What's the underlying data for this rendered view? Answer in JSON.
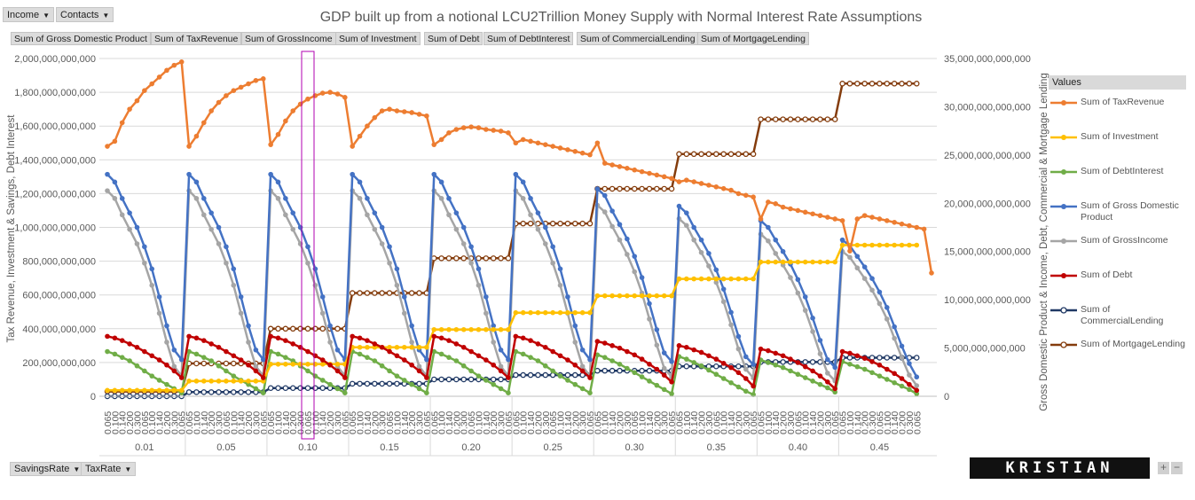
{
  "report_filters": {
    "income": "Income",
    "contacts": "Contacts"
  },
  "value_fields": [
    "Sum of Gross Domestic Product",
    "Sum of TaxRevenue",
    "Sum of GrossIncome",
    "Sum of Investment",
    "Sum of Debt",
    "Sum of DebtInterest",
    "Sum of CommercialLending",
    "Sum of MortgageLending"
  ],
  "axis_fields": {
    "savings_rate": "SavingsRate",
    "tax_rate": "TaxRate"
  },
  "logo_text": "KRISTIAN ZUBER",
  "zoom": {
    "plus": "+",
    "minus": "−"
  },
  "colors": {
    "tax": "#ED7D31",
    "investment": "#FFC000",
    "debt_interest": "#70AD47",
    "gdp": "#4472C4",
    "gross_income": "#A5A5A5",
    "debt": "#C00000",
    "commercial": "#1F3864",
    "mortgage": "#843C0C",
    "highlight": "#B000B0"
  },
  "chart_data": {
    "type": "line",
    "title": "GDP built up from a notional LCU2Trillion Money Supply with Normal Interest Rate Assumptions",
    "ylabel_left": "Tax Revenue, Investment & Savings, Debt Interest",
    "ylabel_right": "Gross Domestic Product & Income, Debt, Commercial & Mortgage Lending",
    "ylim_left": [
      0,
      2000000000000
    ],
    "ylim_right": [
      0,
      35000000000000
    ],
    "yticks_left": [
      "2,000,000,000,000",
      "1,800,000,000,000",
      "1,600,000,000,000",
      "1,400,000,000,000",
      "1,200,000,000,000",
      "1,000,000,000,000",
      "800,000,000,000",
      "600,000,000,000",
      "400,000,000,000",
      "200,000,000,000",
      "0"
    ],
    "yticks_right": [
      "35,000,000,000,000",
      "30,000,000,000,000",
      "25,000,000,000,000",
      "20,000,000,000,000",
      "15,000,000,000,000",
      "10,000,000,000,000",
      "5,000,000,000,000",
      "0"
    ],
    "tax_rates": [
      "0.065",
      "0.100",
      "0.140",
      "0.200",
      "0.300"
    ],
    "savings_rates": [
      "0.01",
      "0.05",
      "0.10",
      "0.15",
      "0.20",
      "0.25",
      "0.30",
      "0.35",
      "0.40",
      "0.45"
    ],
    "points_per_group": 11,
    "highlight": {
      "savings_rate": "0.10",
      "tax_rate": "0.140"
    },
    "legend_title": "Values",
    "series": [
      {
        "name": "Sum of TaxRevenue",
        "key": "tax",
        "axis": "left",
        "marker": "filled",
        "values": [
          1480,
          1510,
          1620,
          1700,
          1750,
          1810,
          1850,
          1890,
          1930,
          1960,
          1980,
          1480,
          1540,
          1620,
          1690,
          1740,
          1780,
          1810,
          1830,
          1850,
          1870,
          1880,
          1490,
          1550,
          1630,
          1690,
          1730,
          1760,
          1780,
          1795,
          1800,
          1790,
          1770,
          1480,
          1540,
          1600,
          1650,
          1690,
          1700,
          1690,
          1685,
          1680,
          1670,
          1660,
          1490,
          1520,
          1560,
          1580,
          1590,
          1595,
          1590,
          1580,
          1575,
          1570,
          1560,
          1500,
          1520,
          1510,
          1500,
          1490,
          1480,
          1470,
          1460,
          1450,
          1440,
          1430,
          1500,
          1380,
          1370,
          1360,
          1350,
          1340,
          1330,
          1320,
          1310,
          1300,
          1290,
          1270,
          1280,
          1270,
          1260,
          1250,
          1240,
          1230,
          1220,
          1200,
          1190,
          1180,
          1050,
          1150,
          1140,
          1120,
          1110,
          1100,
          1090,
          1080,
          1070,
          1060,
          1050,
          1040,
          860,
          1050,
          1070,
          1060,
          1050,
          1040,
          1030,
          1020,
          1010,
          1000,
          990,
          730
        ]
      },
      {
        "name": "Sum of Investment",
        "key": "investment",
        "axis": "left",
        "marker": "filled",
        "values": [
          35,
          35,
          35,
          35,
          35,
          35,
          35,
          35,
          35,
          35,
          35,
          90,
          90,
          90,
          90,
          90,
          90,
          90,
          90,
          90,
          90,
          90,
          190,
          190,
          190,
          190,
          190,
          190,
          190,
          190,
          190,
          190,
          190,
          290,
          290,
          290,
          290,
          290,
          290,
          290,
          290,
          290,
          290,
          290,
          395,
          395,
          395,
          395,
          395,
          395,
          395,
          395,
          395,
          395,
          395,
          495,
          495,
          495,
          495,
          495,
          495,
          495,
          495,
          495,
          495,
          495,
          595,
          595,
          595,
          595,
          595,
          595,
          595,
          595,
          595,
          595,
          595,
          695,
          695,
          695,
          695,
          695,
          695,
          695,
          695,
          695,
          695,
          695,
          795,
          795,
          795,
          795,
          795,
          795,
          795,
          795,
          795,
          795,
          795,
          895,
          895,
          895,
          895,
          895,
          895,
          895,
          895,
          895,
          895,
          895
        ]
      },
      {
        "name": "Sum of DebtInterest",
        "key": "debt_interest",
        "axis": "left",
        "marker": "filled",
        "values": [
          265,
          250,
          230,
          210,
          180,
          150,
          120,
          95,
          70,
          45,
          20,
          265,
          250,
          230,
          210,
          180,
          150,
          120,
          95,
          70,
          45,
          20,
          265,
          250,
          230,
          210,
          180,
          150,
          120,
          95,
          70,
          45,
          20,
          265,
          250,
          230,
          210,
          180,
          150,
          120,
          95,
          70,
          45,
          20,
          265,
          250,
          230,
          210,
          180,
          150,
          120,
          95,
          70,
          45,
          20,
          265,
          250,
          230,
          210,
          180,
          150,
          120,
          95,
          70,
          45,
          20,
          245,
          230,
          210,
          190,
          165,
          140,
          115,
          90,
          65,
          40,
          15,
          235,
          220,
          200,
          180,
          155,
          130,
          105,
          80,
          55,
          30,
          10,
          215,
          200,
          185,
          170,
          150,
          130,
          110,
          90,
          70,
          50,
          25,
          205,
          190,
          175,
          160,
          140,
          120,
          100,
          80,
          60,
          40,
          15
        ]
      },
      {
        "name": "Sum of Gross Domestic Product",
        "key": "gdp",
        "axis": "right",
        "marker": "filled",
        "values": [
          23000,
          22200,
          20500,
          19000,
          17500,
          15500,
          13200,
          10300,
          7300,
          4800,
          3800,
          23000,
          22200,
          20500,
          19000,
          17500,
          15500,
          13200,
          10300,
          7300,
          4800,
          3800,
          23000,
          22200,
          20500,
          19000,
          17500,
          15500,
          13200,
          10300,
          7300,
          4800,
          3800,
          23000,
          22200,
          20500,
          19000,
          17500,
          15500,
          13200,
          10300,
          7300,
          4800,
          3800,
          23000,
          22200,
          20500,
          19000,
          17500,
          15500,
          13200,
          10300,
          7300,
          4800,
          3800,
          23000,
          22200,
          20500,
          19000,
          17500,
          15500,
          13200,
          10300,
          7300,
          4800,
          3800,
          21500,
          20800,
          19200,
          17800,
          16300,
          14500,
          12300,
          9600,
          6900,
          4500,
          3600,
          19700,
          19000,
          17500,
          16200,
          14800,
          13100,
          11100,
          8700,
          6200,
          4100,
          3300,
          18200,
          17500,
          16200,
          15000,
          13700,
          12100,
          10300,
          8100,
          5800,
          3800,
          3000,
          16200,
          15600,
          14500,
          13400,
          12200,
          10800,
          9200,
          7200,
          5200,
          3400,
          2000
        ]
      },
      {
        "name": "Sum of GrossIncome",
        "key": "gross_income",
        "axis": "right",
        "marker": "filled",
        "values": [
          21300,
          20500,
          18800,
          17300,
          15800,
          13800,
          11500,
          8600,
          5600,
          3100,
          2100,
          21300,
          20500,
          18800,
          17300,
          15800,
          13800,
          11500,
          8600,
          5600,
          3100,
          2100,
          21300,
          20500,
          18800,
          17300,
          15800,
          13800,
          11500,
          8600,
          5600,
          3100,
          2100,
          21300,
          20500,
          18800,
          17300,
          15800,
          13800,
          11500,
          8600,
          5600,
          3100,
          2100,
          21300,
          20500,
          18800,
          17300,
          15800,
          13800,
          11500,
          8600,
          5600,
          3100,
          2100,
          21300,
          20500,
          18800,
          17300,
          15800,
          13800,
          11500,
          8600,
          5600,
          3100,
          2100,
          19800,
          19100,
          17600,
          16200,
          14700,
          12900,
          10700,
          8000,
          5300,
          2900,
          2000,
          18400,
          17700,
          16200,
          14900,
          13500,
          11800,
          9800,
          7400,
          4900,
          2800,
          1900,
          16800,
          16100,
          14800,
          13600,
          12300,
          10700,
          8900,
          6700,
          4400,
          2400,
          1600,
          15000,
          14400,
          13300,
          12200,
          11000,
          9600,
          8000,
          6000,
          4000,
          2200,
          1100
        ]
      },
      {
        "name": "Sum of Debt",
        "key": "debt",
        "axis": "left",
        "marker": "filled",
        "values": [
          355,
          345,
          330,
          310,
          290,
          265,
          240,
          215,
          185,
          150,
          110,
          355,
          345,
          330,
          310,
          290,
          265,
          240,
          215,
          185,
          150,
          110,
          355,
          345,
          330,
          310,
          290,
          265,
          240,
          215,
          185,
          150,
          110,
          355,
          345,
          330,
          310,
          290,
          265,
          240,
          215,
          185,
          150,
          110,
          355,
          345,
          330,
          310,
          290,
          265,
          240,
          215,
          185,
          150,
          110,
          355,
          345,
          330,
          310,
          290,
          265,
          240,
          215,
          185,
          150,
          110,
          325,
          315,
          300,
          285,
          265,
          245,
          220,
          190,
          160,
          125,
          85,
          300,
          290,
          275,
          260,
          240,
          220,
          195,
          170,
          140,
          105,
          60,
          280,
          270,
          255,
          240,
          220,
          200,
          175,
          150,
          120,
          85,
          45,
          265,
          255,
          240,
          225,
          205,
          185,
          160,
          135,
          105,
          70,
          35
        ]
      },
      {
        "name": "Sum of CommercialLending",
        "key": "commercial",
        "axis": "right",
        "marker": "open",
        "values": [
          0,
          0,
          0,
          0,
          0,
          0,
          0,
          0,
          0,
          0,
          0,
          430,
          430,
          430,
          430,
          430,
          430,
          430,
          430,
          430,
          430,
          430,
          850,
          850,
          850,
          850,
          850,
          850,
          850,
          850,
          850,
          850,
          850,
          1300,
          1300,
          1300,
          1300,
          1300,
          1300,
          1300,
          1300,
          1300,
          1300,
          1300,
          1750,
          1750,
          1750,
          1750,
          1750,
          1750,
          1750,
          1750,
          1750,
          1750,
          1750,
          2200,
          2200,
          2200,
          2200,
          2200,
          2200,
          2200,
          2200,
          2200,
          2200,
          2200,
          2650,
          2650,
          2650,
          2650,
          2650,
          2650,
          2650,
          2650,
          2650,
          2650,
          2650,
          3100,
          3100,
          3100,
          3100,
          3100,
          3100,
          3100,
          3100,
          3100,
          3100,
          3100,
          3550,
          3550,
          3550,
          3550,
          3550,
          3550,
          3550,
          3550,
          3550,
          3550,
          3550,
          4000,
          4000,
          4000,
          4000,
          4000,
          4000,
          4000,
          4000,
          4000,
          4000,
          4000
        ]
      },
      {
        "name": "Sum of MortgageLending",
        "key": "mortgage",
        "axis": "right",
        "marker": "open",
        "values": [
          500,
          500,
          500,
          500,
          500,
          500,
          500,
          500,
          500,
          500,
          500,
          3400,
          3400,
          3400,
          3400,
          3400,
          3400,
          3400,
          3400,
          3400,
          3400,
          3400,
          7000,
          7000,
          7000,
          7000,
          7000,
          7000,
          7000,
          7000,
          7000,
          7000,
          7000,
          10700,
          10700,
          10700,
          10700,
          10700,
          10700,
          10700,
          10700,
          10700,
          10700,
          10700,
          14300,
          14300,
          14300,
          14300,
          14300,
          14300,
          14300,
          14300,
          14300,
          14300,
          14300,
          17900,
          17900,
          17900,
          17900,
          17900,
          17900,
          17900,
          17900,
          17900,
          17900,
          17900,
          21500,
          21500,
          21500,
          21500,
          21500,
          21500,
          21500,
          21500,
          21500,
          21500,
          21500,
          25100,
          25100,
          25100,
          25100,
          25100,
          25100,
          25100,
          25100,
          25100,
          25100,
          25100,
          28700,
          28700,
          28700,
          28700,
          28700,
          28700,
          28700,
          28700,
          28700,
          28700,
          28700,
          32400,
          32400,
          32400,
          32400,
          32400,
          32400,
          32400,
          32400,
          32400,
          32400,
          32400
        ]
      }
    ]
  }
}
